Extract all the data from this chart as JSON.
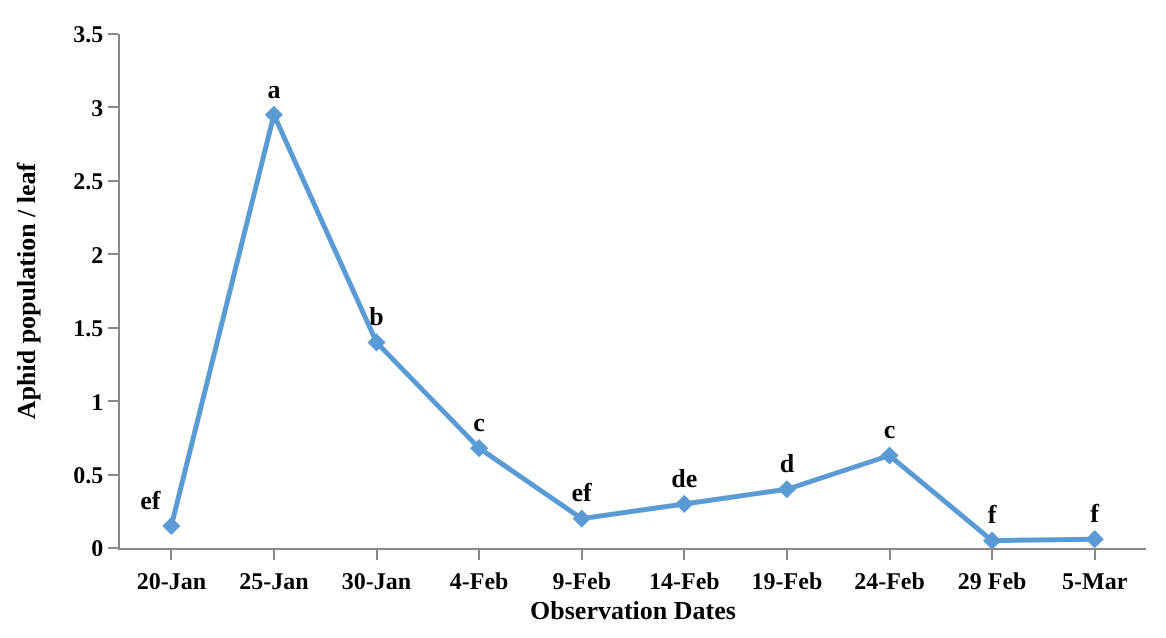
{
  "chart_data": {
    "type": "line",
    "xlabel": "Observation Dates",
    "ylabel": "Aphid population / leaf",
    "categories": [
      "20-Jan",
      "25-Jan",
      "30-Jan",
      "4-Feb",
      "9-Feb",
      "14-Feb",
      "19-Feb",
      "24-Feb",
      "29 Feb",
      "5-Mar"
    ],
    "series": [
      {
        "color": "#5b9bd5",
        "values": [
          0.15,
          2.95,
          1.4,
          0.68,
          0.2,
          0.3,
          0.4,
          0.63,
          0.05,
          0.06
        ],
        "value_labels": [
          "ef",
          "a",
          "b",
          "c",
          "ef",
          "de",
          "d",
          "c",
          "f",
          "f"
        ]
      }
    ],
    "ylim": [
      0,
      3.5
    ],
    "yticks": [
      0,
      0.5,
      1,
      1.5,
      2,
      2.5,
      3,
      3.5
    ],
    "marker": "diamond",
    "line_style": "solid",
    "legend": false
  }
}
